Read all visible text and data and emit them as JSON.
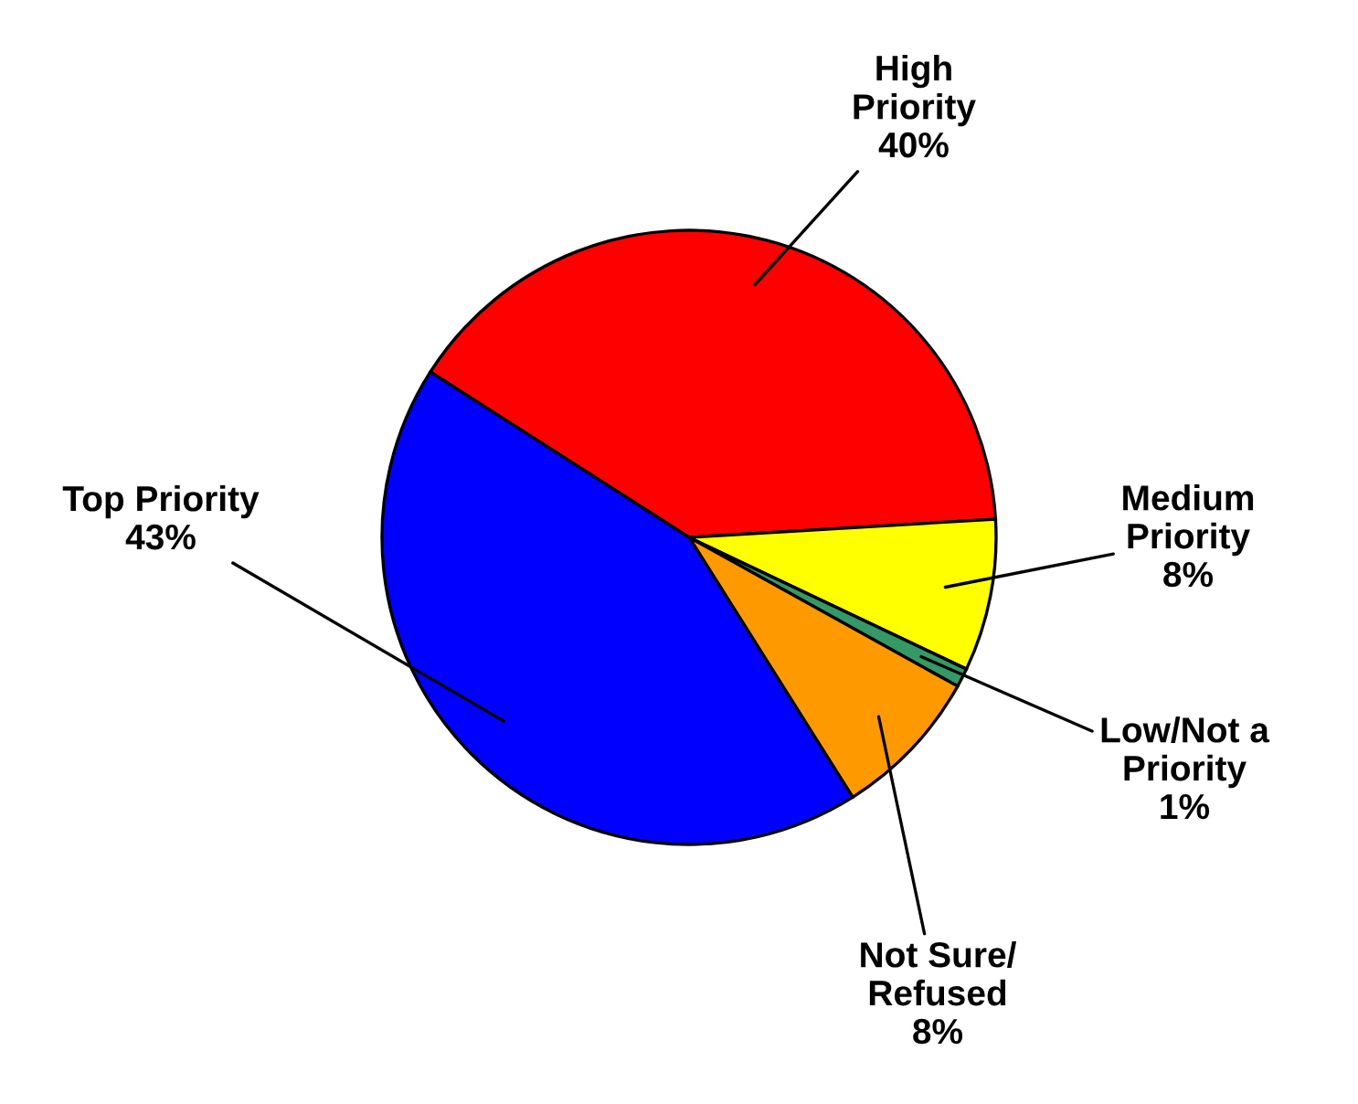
{
  "chart_data": {
    "type": "pie",
    "categories": [
      "High\nPriority",
      "Medium\nPriority",
      "Low/Not a\nPriority",
      "Not Sure/\nRefused",
      "Top Priority"
    ],
    "values": [
      40,
      8,
      1,
      8,
      43
    ],
    "value_labels": [
      "40%",
      "8%",
      "1%",
      "8%",
      "43%"
    ],
    "colors": [
      "#ff0000",
      "#ffff00",
      "#339966",
      "#ff9900",
      "#0000ff"
    ]
  }
}
